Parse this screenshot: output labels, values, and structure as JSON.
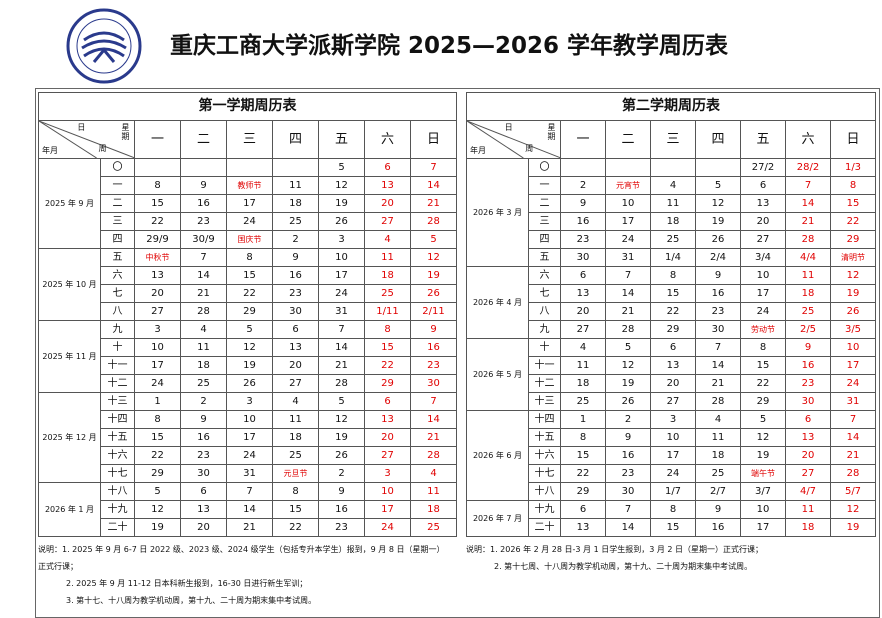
{
  "header": {
    "title": "重庆工商大学派斯学院 2025—2026 学年教学周历表"
  },
  "semesters": [
    {
      "title": "第一学期周历表",
      "corner": {
        "day": "日",
        "weekday": "星期",
        "month": "年月",
        "week": "周"
      },
      "weekdays": [
        "一",
        "二",
        "三",
        "四",
        "五",
        "六",
        "日"
      ],
      "months": [
        {
          "label": "2025 年 9 月",
          "weeks": [
            {
              "week": "〇",
              "days": [
                null,
                null,
                null,
                null,
                "5",
                "6",
                "7"
              ]
            },
            {
              "week": "一",
              "days": [
                "8",
                "9",
                "教师节",
                "11",
                "12",
                "13",
                "14"
              ]
            },
            {
              "week": "二",
              "days": [
                "15",
                "16",
                "17",
                "18",
                "19",
                "20",
                "21"
              ]
            },
            {
              "week": "三",
              "days": [
                "22",
                "23",
                "24",
                "25",
                "26",
                "27",
                "28"
              ]
            },
            {
              "week": "四",
              "days": [
                "29/9",
                "30/9",
                "国庆节",
                "2",
                "3",
                "4",
                "5"
              ]
            }
          ]
        },
        {
          "label": "2025 年 10 月",
          "weeks": [
            {
              "week": "五",
              "days": [
                "中秋节",
                "7",
                "8",
                "9",
                "10",
                "11",
                "12"
              ]
            },
            {
              "week": "六",
              "days": [
                "13",
                "14",
                "15",
                "16",
                "17",
                "18",
                "19"
              ]
            },
            {
              "week": "七",
              "days": [
                "20",
                "21",
                "22",
                "23",
                "24",
                "25",
                "26"
              ]
            },
            {
              "week": "八",
              "days": [
                "27",
                "28",
                "29",
                "30",
                "31",
                "1/11",
                "2/11"
              ]
            }
          ]
        },
        {
          "label": "2025 年 11 月",
          "weeks": [
            {
              "week": "九",
              "days": [
                "3",
                "4",
                "5",
                "6",
                "7",
                "8",
                "9"
              ]
            },
            {
              "week": "十",
              "days": [
                "10",
                "11",
                "12",
                "13",
                "14",
                "15",
                "16"
              ]
            },
            {
              "week": "十一",
              "days": [
                "17",
                "18",
                "19",
                "20",
                "21",
                "22",
                "23"
              ]
            },
            {
              "week": "十二",
              "days": [
                "24",
                "25",
                "26",
                "27",
                "28",
                "29",
                "30"
              ]
            }
          ]
        },
        {
          "label": "2025 年 12 月",
          "weeks": [
            {
              "week": "十三",
              "days": [
                "1",
                "2",
                "3",
                "4",
                "5",
                "6",
                "7"
              ]
            },
            {
              "week": "十四",
              "days": [
                "8",
                "9",
                "10",
                "11",
                "12",
                "13",
                "14"
              ]
            },
            {
              "week": "十五",
              "days": [
                "15",
                "16",
                "17",
                "18",
                "19",
                "20",
                "21"
              ]
            },
            {
              "week": "十六",
              "days": [
                "22",
                "23",
                "24",
                "25",
                "26",
                "27",
                "28"
              ]
            },
            {
              "week": "十七",
              "days": [
                "29",
                "30",
                "31",
                "元旦节",
                "2",
                "3",
                "4"
              ]
            }
          ]
        },
        {
          "label": "2026 年 1 月",
          "weeks": [
            {
              "week": "十八",
              "days": [
                "5",
                "6",
                "7",
                "8",
                "9",
                "10",
                "11"
              ]
            },
            {
              "week": "十九",
              "days": [
                "12",
                "13",
                "14",
                "15",
                "16",
                "17",
                "18"
              ]
            },
            {
              "week": "二十",
              "days": [
                "19",
                "20",
                "21",
                "22",
                "23",
                "24",
                "25"
              ]
            }
          ]
        }
      ],
      "notes": [
        "说明：1. 2025 年 9 月 6-7 日 2022 级、2023 级、2024 级学生（包括专升本学生）报到，9 月 8 日（星期一）正式行课；",
        "2. 2025 年 9 月 11-12 日本科新生报到，16-30 日进行新生军训；",
        "3. 第十七、十八周为教学机动周，第十九、二十周为期末集中考试周。"
      ]
    },
    {
      "title": "第二学期周历表",
      "corner": {
        "day": "日",
        "weekday": "星期",
        "month": "年月",
        "week": "周"
      },
      "weekdays": [
        "一",
        "二",
        "三",
        "四",
        "五",
        "六",
        "日"
      ],
      "months": [
        {
          "label": "2026 年 3 月",
          "weeks": [
            {
              "week": "〇",
              "days": [
                null,
                null,
                null,
                null,
                "27/2",
                "28/2",
                "1/3"
              ]
            },
            {
              "week": "一",
              "days": [
                "2",
                "元宵节",
                "4",
                "5",
                "6",
                "7",
                "8"
              ]
            },
            {
              "week": "二",
              "days": [
                "9",
                "10",
                "11",
                "12",
                "13",
                "14",
                "15"
              ]
            },
            {
              "week": "三",
              "days": [
                "16",
                "17",
                "18",
                "19",
                "20",
                "21",
                "22"
              ]
            },
            {
              "week": "四",
              "days": [
                "23",
                "24",
                "25",
                "26",
                "27",
                "28",
                "29"
              ]
            },
            {
              "week": "五",
              "days": [
                "30",
                "31",
                "1/4",
                "2/4",
                "3/4",
                "4/4",
                "清明节"
              ]
            }
          ]
        },
        {
          "label": "2026 年 4 月",
          "weeks": [
            {
              "week": "六",
              "days": [
                "6",
                "7",
                "8",
                "9",
                "10",
                "11",
                "12"
              ]
            },
            {
              "week": "七",
              "days": [
                "13",
                "14",
                "15",
                "16",
                "17",
                "18",
                "19"
              ]
            },
            {
              "week": "八",
              "days": [
                "20",
                "21",
                "22",
                "23",
                "24",
                "25",
                "26"
              ]
            },
            {
              "week": "九",
              "days": [
                "27",
                "28",
                "29",
                "30",
                "劳动节",
                "2/5",
                "3/5"
              ]
            }
          ]
        },
        {
          "label": "2026 年 5 月",
          "weeks": [
            {
              "week": "十",
              "days": [
                "4",
                "5",
                "6",
                "7",
                "8",
                "9",
                "10"
              ]
            },
            {
              "week": "十一",
              "days": [
                "11",
                "12",
                "13",
                "14",
                "15",
                "16",
                "17"
              ]
            },
            {
              "week": "十二",
              "days": [
                "18",
                "19",
                "20",
                "21",
                "22",
                "23",
                "24"
              ]
            },
            {
              "week": "十三",
              "days": [
                "25",
                "26",
                "27",
                "28",
                "29",
                "30",
                "31"
              ]
            }
          ]
        },
        {
          "label": "2026 年 6 月",
          "weeks": [
            {
              "week": "十四",
              "days": [
                "1",
                "2",
                "3",
                "4",
                "5",
                "6",
                "7"
              ]
            },
            {
              "week": "十五",
              "days": [
                "8",
                "9",
                "10",
                "11",
                "12",
                "13",
                "14"
              ]
            },
            {
              "week": "十六",
              "days": [
                "15",
                "16",
                "17",
                "18",
                "19",
                "20",
                "21"
              ]
            },
            {
              "week": "十七",
              "days": [
                "22",
                "23",
                "24",
                "25",
                "端午节",
                "27",
                "28"
              ]
            },
            {
              "week": "十八",
              "days": [
                "29",
                "30",
                "1/7",
                "2/7",
                "3/7",
                "4/7",
                "5/7"
              ]
            }
          ]
        },
        {
          "label": "2026 年 7 月",
          "weeks": [
            {
              "week": "十九",
              "days": [
                "6",
                "7",
                "8",
                "9",
                "10",
                "11",
                "12"
              ]
            },
            {
              "week": "二十",
              "days": [
                "13",
                "14",
                "15",
                "16",
                "17",
                "18",
                "19"
              ]
            }
          ]
        }
      ],
      "notes": [
        "说明：1. 2026 年 2 月 28 日-3 月 1 日学生报到，3 月 2 日（星期一）正式行课；",
        "2. 第十七周、十八周为教学机动周，第十九、二十周为期末集中考试周。"
      ]
    }
  ]
}
